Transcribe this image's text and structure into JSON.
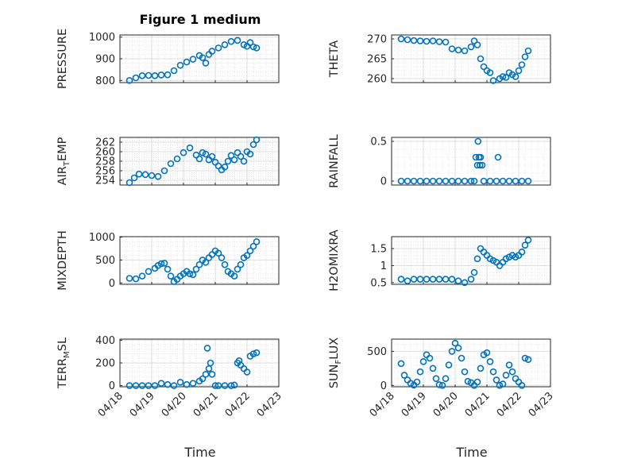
{
  "figure": {
    "title": "Figure 1 medium",
    "marker_color": "#0072BD",
    "x_ticks": [
      "04/18",
      "04/19",
      "04/20",
      "04/21",
      "04/22",
      "04/23"
    ],
    "x_label": "Time"
  },
  "chart_data": [
    {
      "type": "scatter",
      "ylabel": "PRESSURE",
      "ylim": [
        790,
        1010
      ],
      "yticks": [
        800,
        900,
        1000
      ],
      "ytick_labels": [
        "800",
        "900",
        "1000"
      ],
      "x_range": [
        "04/18",
        "04/23"
      ],
      "x": [
        0.3,
        0.5,
        0.7,
        0.9,
        1.1,
        1.3,
        1.5,
        1.7,
        1.9,
        2.1,
        2.3,
        2.5,
        2.6,
        2.7,
        2.8,
        2.9,
        3.1,
        3.3,
        3.5,
        3.7,
        3.9,
        4.0,
        4.1,
        4.2,
        4.3
      ],
      "y": [
        800,
        812,
        822,
        823,
        822,
        825,
        826,
        845,
        870,
        885,
        898,
        915,
        905,
        880,
        920,
        935,
        950,
        965,
        980,
        985,
        965,
        958,
        975,
        955,
        950
      ]
    },
    {
      "type": "scatter",
      "ylabel": "THETA",
      "ylim": [
        259,
        271
      ],
      "yticks": [
        260,
        265,
        270
      ],
      "ytick_labels": [
        "260",
        "265",
        "270"
      ],
      "x_range": [
        "04/18",
        "04/23"
      ],
      "x": [
        0.3,
        0.5,
        0.7,
        0.9,
        1.1,
        1.3,
        1.5,
        1.7,
        1.9,
        2.1,
        2.3,
        2.5,
        2.6,
        2.7,
        2.8,
        2.9,
        3.0,
        3.1,
        3.2,
        3.4,
        3.5,
        3.6,
        3.7,
        3.8,
        3.9,
        4.0,
        4.1,
        4.2,
        4.3
      ],
      "y": [
        270,
        269.8,
        269.6,
        269.5,
        269.4,
        269.5,
        269.3,
        269.2,
        267.5,
        267.2,
        267.0,
        268.0,
        269.5,
        268.5,
        265.0,
        263.0,
        262.0,
        261.5,
        259.5,
        260.0,
        260.5,
        260.3,
        261.5,
        261.0,
        260.5,
        262.0,
        263.5,
        265.5,
        267.0
      ]
    },
    {
      "type": "scatter",
      "ylabel": "AIR_TEMP",
      "ylim": [
        253,
        263
      ],
      "yticks": [
        254,
        256,
        258,
        260,
        262
      ],
      "ytick_labels": [
        "254",
        "256",
        "258",
        "260",
        "262"
      ],
      "x_range": [
        "04/18",
        "04/23"
      ],
      "x": [
        0.3,
        0.45,
        0.6,
        0.8,
        1.0,
        1.2,
        1.4,
        1.6,
        1.8,
        2.0,
        2.2,
        2.4,
        2.5,
        2.6,
        2.7,
        2.8,
        2.9,
        3.0,
        3.1,
        3.2,
        3.3,
        3.4,
        3.5,
        3.6,
        3.7,
        3.8,
        3.9,
        4.0,
        4.1,
        4.2,
        4.3
      ],
      "y": [
        253.5,
        254.5,
        255.3,
        255.2,
        255.0,
        254.8,
        256.0,
        257.5,
        258.5,
        259.8,
        260.8,
        259.3,
        258.5,
        259.8,
        259.5,
        258.3,
        259.0,
        257.8,
        257.0,
        256.2,
        256.8,
        258.0,
        259.2,
        258.3,
        259.8,
        259.0,
        258.0,
        260.0,
        259.5,
        261.5,
        262.5
      ]
    },
    {
      "type": "scatter",
      "ylabel": "RAINFALL",
      "ylim": [
        -0.05,
        0.55
      ],
      "yticks": [
        0,
        0.5
      ],
      "ytick_labels": [
        "0",
        "0.5"
      ],
      "x_range": [
        "04/18",
        "04/23"
      ],
      "x": [
        0.3,
        0.5,
        0.7,
        0.9,
        1.1,
        1.3,
        1.5,
        1.7,
        1.9,
        2.1,
        2.3,
        2.5,
        2.6,
        2.65,
        2.7,
        2.72,
        2.75,
        2.78,
        2.8,
        2.85,
        2.9,
        3.1,
        3.3,
        3.5,
        3.7,
        3.9,
        4.1,
        4.3,
        3.35
      ],
      "y": [
        0,
        0,
        0,
        0,
        0,
        0,
        0,
        0,
        0,
        0,
        0,
        0,
        0,
        0.3,
        0.2,
        0.5,
        0.3,
        0.2,
        0.3,
        0.2,
        0,
        0,
        0,
        0,
        0,
        0,
        0,
        0,
        0.3
      ]
    },
    {
      "type": "scatter",
      "ylabel": "MIXDEPTH",
      "ylim": [
        -30,
        1010
      ],
      "yticks": [
        0,
        500,
        1000
      ],
      "ytick_labels": [
        "0",
        "500",
        "1000"
      ],
      "x_range": [
        "04/18",
        "04/23"
      ],
      "x": [
        0.3,
        0.5,
        0.7,
        0.9,
        1.1,
        1.2,
        1.3,
        1.4,
        1.5,
        1.6,
        1.7,
        1.8,
        1.9,
        2.0,
        2.1,
        2.2,
        2.3,
        2.4,
        2.5,
        2.6,
        2.7,
        2.8,
        2.9,
        3.0,
        3.1,
        3.2,
        3.3,
        3.4,
        3.5,
        3.6,
        3.7,
        3.8,
        3.9,
        4.0,
        4.1,
        4.2,
        4.3
      ],
      "y": [
        100,
        90,
        150,
        250,
        320,
        380,
        420,
        430,
        300,
        150,
        30,
        80,
        150,
        200,
        250,
        200,
        180,
        300,
        400,
        500,
        450,
        550,
        620,
        700,
        650,
        550,
        400,
        250,
        200,
        150,
        300,
        400,
        550,
        600,
        700,
        800,
        900
      ]
    },
    {
      "type": "scatter",
      "ylabel": "H2OMIXRA",
      "ylim": [
        0.45,
        1.85
      ],
      "yticks": [
        0.5,
        1,
        1.5
      ],
      "ytick_labels": [
        "0.5",
        "1",
        "1.5"
      ],
      "x_range": [
        "04/18",
        "04/23"
      ],
      "x": [
        0.3,
        0.5,
        0.7,
        0.9,
        1.1,
        1.3,
        1.5,
        1.7,
        1.9,
        2.1,
        2.3,
        2.5,
        2.6,
        2.7,
        2.8,
        2.9,
        3.0,
        3.1,
        3.2,
        3.3,
        3.4,
        3.5,
        3.6,
        3.7,
        3.8,
        3.9,
        4.0,
        4.1,
        4.2,
        4.3
      ],
      "y": [
        0.6,
        0.55,
        0.6,
        0.6,
        0.6,
        0.6,
        0.6,
        0.6,
        0.6,
        0.55,
        0.5,
        0.6,
        0.8,
        1.2,
        1.5,
        1.4,
        1.3,
        1.2,
        1.15,
        1.1,
        1.0,
        1.1,
        1.2,
        1.25,
        1.3,
        1.25,
        1.3,
        1.4,
        1.6,
        1.75
      ]
    },
    {
      "type": "scatter",
      "ylabel": "TERR_MSL",
      "ylim": [
        -10,
        410
      ],
      "yticks": [
        0,
        200,
        400
      ],
      "ytick_labels": [
        "0",
        "200",
        "400"
      ],
      "x_range": [
        "04/18",
        "04/23"
      ],
      "x": [
        0.3,
        0.5,
        0.7,
        0.9,
        1.1,
        1.3,
        1.5,
        1.7,
        1.9,
        2.1,
        2.3,
        2.5,
        2.6,
        2.7,
        2.75,
        2.8,
        2.85,
        2.9,
        3.0,
        3.1,
        3.3,
        3.5,
        3.6,
        3.7,
        3.75,
        3.8,
        3.9,
        4.0,
        4.1,
        4.2,
        4.3
      ],
      "y": [
        0,
        0,
        0,
        0,
        0,
        20,
        10,
        0,
        30,
        10,
        20,
        40,
        60,
        100,
        330,
        150,
        200,
        100,
        0,
        0,
        0,
        0,
        5,
        200,
        220,
        180,
        150,
        120,
        260,
        280,
        290
      ]
    },
    {
      "type": "scatter",
      "ylabel": "SUN_FLUX",
      "ylim": [
        -20,
        680
      ],
      "yticks": [
        0,
        500
      ],
      "ytick_labels": [
        "0",
        "500"
      ],
      "x_range": [
        "04/18",
        "04/23"
      ],
      "x": [
        0.3,
        0.4,
        0.5,
        0.6,
        0.7,
        0.8,
        0.9,
        1.0,
        1.1,
        1.2,
        1.3,
        1.4,
        1.5,
        1.6,
        1.7,
        1.8,
        1.9,
        2.0,
        2.1,
        2.2,
        2.3,
        2.4,
        2.5,
        2.6,
        2.7,
        2.8,
        2.9,
        3.0,
        3.1,
        3.2,
        3.3,
        3.4,
        3.5,
        3.6,
        3.7,
        3.8,
        3.9,
        4.0,
        4.1,
        4.2,
        4.3
      ],
      "y": [
        320,
        150,
        80,
        30,
        5,
        50,
        200,
        350,
        450,
        400,
        250,
        100,
        10,
        0,
        100,
        300,
        500,
        620,
        550,
        400,
        200,
        60,
        40,
        0,
        50,
        250,
        450,
        480,
        350,
        200,
        80,
        0,
        20,
        150,
        300,
        200,
        100,
        50,
        0,
        400,
        380
      ]
    }
  ]
}
